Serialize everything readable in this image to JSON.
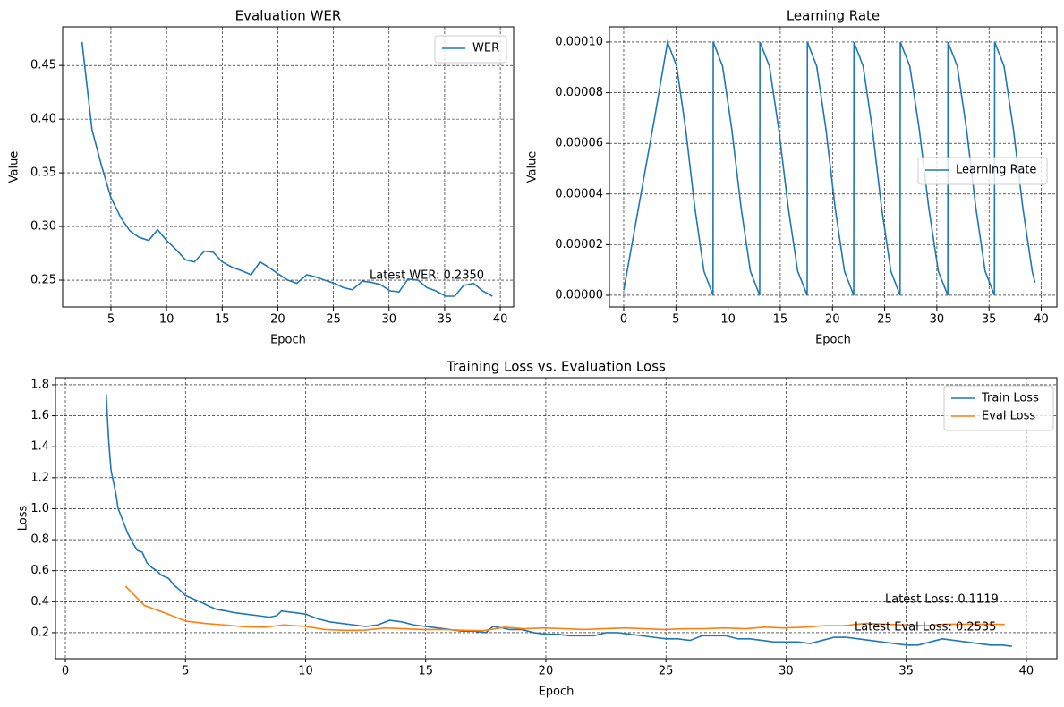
{
  "chart_data": [
    {
      "type": "line",
      "title": "Evaluation WER",
      "x_label": "Epoch",
      "y_label": "Value",
      "xlim": [
        0.66,
        41.2
      ],
      "ylim": [
        0.225,
        0.486
      ],
      "xticks": [
        5,
        10,
        15,
        20,
        25,
        30,
        35,
        40
      ],
      "yticks": [
        0.25,
        {
          "value": 0.3,
          "label": "0.30"
        },
        0.35,
        {
          "value": 0.4,
          "label": "0.40"
        },
        0.45
      ],
      "grid": true,
      "legend": "upper right",
      "annotations": [
        "Latest WER: 0.2350"
      ],
      "series": [
        {
          "name": "WER",
          "color": "#1f77b4",
          "x": [
            2.4,
            3.3,
            4.2,
            5,
            5.9,
            6.7,
            7.5,
            8.4,
            9.2,
            10,
            10.9,
            11.7,
            12.5,
            13.4,
            14.2,
            15,
            15.9,
            16.7,
            17.6,
            18.4,
            19.2,
            20,
            20.9,
            21.7,
            22.6,
            23.4,
            24.2,
            25.1,
            25.9,
            26.7,
            27.6,
            28.4,
            29.2,
            30.1,
            30.9,
            31.7,
            32.6,
            33.4,
            34.2,
            35.1,
            35.9,
            36.7,
            37.6,
            38.4,
            39.3
          ],
          "values": [
            0.472,
            0.39,
            0.355,
            0.327,
            0.308,
            0.296,
            0.29,
            0.287,
            0.297,
            0.287,
            0.278,
            0.269,
            0.267,
            0.277,
            0.276,
            0.267,
            0.262,
            0.259,
            0.255,
            0.267,
            0.262,
            0.256,
            0.25,
            0.247,
            0.255,
            0.253,
            0.25,
            0.247,
            0.243,
            0.241,
            0.249,
            0.248,
            0.246,
            0.24,
            0.239,
            0.251,
            0.25,
            0.243,
            0.24,
            0.235,
            0.235,
            0.245,
            0.247,
            0.24,
            0.235
          ]
        }
      ]
    },
    {
      "type": "line",
      "title": "Learning Rate",
      "x_label": "Epoch",
      "y_label": "Value",
      "xlim": [
        -1.37,
        41.5
      ],
      "ylim": [
        -4.6e-06,
        0.000106
      ],
      "xticks": [
        0,
        5,
        10,
        15,
        20,
        25,
        30,
        35,
        40
      ],
      "yticks": [
        {
          "value": 0,
          "label": "0.00000"
        },
        {
          "value": 2e-05,
          "label": "0.00002"
        },
        {
          "value": 4e-05,
          "label": "0.00004"
        },
        {
          "value": 6e-05,
          "label": "0.00006"
        },
        {
          "value": 8e-05,
          "label": "0.00008"
        },
        {
          "value": 0.0001,
          "label": "0.00010"
        }
      ],
      "grid": true,
      "legend": "center right",
      "series": [
        {
          "name": "Learning Rate",
          "color": "#1f77b4",
          "x": [
            0,
            1,
            2,
            3,
            4.2,
            5.07,
            5.94,
            6.82,
            7.69,
            8.56,
            8.58,
            9.47,
            10.36,
            11.25,
            12.14,
            13.03,
            13.05,
            13.96,
            14.86,
            15.77,
            16.67,
            17.58,
            17.6,
            18.49,
            19.38,
            20.26,
            21.15,
            22.04,
            22.06,
            22.94,
            23.83,
            24.71,
            25.6,
            26.48,
            26.5,
            27.41,
            28.32,
            29.23,
            30.14,
            31.05,
            31.07,
            31.96,
            32.85,
            33.74,
            34.63,
            35.52,
            35.54,
            36.44,
            37.34,
            38.24,
            39.14,
            39.4
          ],
          "values": [
            2e-06,
            2.5e-05,
            4.8e-05,
            7.1e-05,
            0.0001,
            9.05e-05,
            6.55e-05,
            3.45e-05,
            9.5e-06,
            0,
            0.0001,
            9.05e-05,
            6.55e-05,
            3.45e-05,
            9.5e-06,
            0,
            0.0001,
            9.05e-05,
            6.55e-05,
            3.45e-05,
            9.5e-06,
            0,
            0.0001,
            9.05e-05,
            6.55e-05,
            3.45e-05,
            9.5e-06,
            0,
            0.0001,
            9.05e-05,
            6.55e-05,
            3.45e-05,
            9.5e-06,
            0,
            0.0001,
            9.05e-05,
            6.55e-05,
            3.45e-05,
            9.5e-06,
            0,
            0.0001,
            9.05e-05,
            6.55e-05,
            3.45e-05,
            9.5e-06,
            0,
            0.0001,
            9.05e-05,
            6.55e-05,
            3.45e-05,
            9.5e-06,
            5e-06
          ]
        }
      ]
    },
    {
      "type": "line",
      "title": "Training Loss vs. Evaluation Loss",
      "x_label": "Epoch",
      "y_label": "Loss",
      "xlim": [
        -0.41,
        41.27
      ],
      "ylim": [
        0.032,
        1.846
      ],
      "xticks": [
        0,
        5,
        10,
        15,
        20,
        25,
        30,
        35,
        40
      ],
      "yticks": [
        0.2,
        0.4,
        0.6,
        0.8,
        {
          "value": 1,
          "label": "1.0"
        },
        1.2,
        1.4,
        1.6,
        1.8
      ],
      "grid": true,
      "legend": "upper right",
      "annotations": [
        "Latest Loss: 0.1119",
        "Latest Eval Loss: 0.2535"
      ],
      "series": [
        {
          "name": "Train Loss",
          "color": "#1f77b4",
          "x": [
            1.7,
            1.8,
            1.9,
            2.1,
            2.2,
            2.4,
            2.6,
            2.8,
            3.0,
            3.2,
            3.4,
            3.6,
            3.8,
            4.0,
            4.3,
            4.5,
            4.8,
            5.0,
            5.3,
            5.6,
            6.0,
            6.3,
            6.7,
            7.0,
            7.5,
            8.0,
            8.5,
            8.8,
            9.0,
            9.5,
            10,
            10.5,
            11,
            11.5,
            12,
            12.5,
            13,
            13.5,
            14,
            14.5,
            15,
            15.5,
            16,
            16.5,
            17,
            17.5,
            17.8,
            18.2,
            18.5,
            19,
            19.5,
            20,
            20.5,
            21,
            21.5,
            22,
            22.5,
            23,
            23.5,
            24,
            24.5,
            25,
            25.5,
            26,
            26.5,
            27,
            27.5,
            28,
            28.5,
            29,
            29.5,
            30,
            30.5,
            31,
            31.5,
            32,
            32.5,
            33,
            33.5,
            34,
            34.5,
            35,
            35.5,
            36,
            36.5,
            37,
            37.5,
            38,
            38.5,
            39,
            39.4
          ],
          "values": [
            1.74,
            1.45,
            1.25,
            1.1,
            1.0,
            0.92,
            0.84,
            0.78,
            0.73,
            0.72,
            0.65,
            0.62,
            0.6,
            0.57,
            0.55,
            0.51,
            0.47,
            0.44,
            0.42,
            0.4,
            0.37,
            0.35,
            0.34,
            0.33,
            0.32,
            0.31,
            0.3,
            0.31,
            0.34,
            0.33,
            0.32,
            0.29,
            0.27,
            0.26,
            0.25,
            0.24,
            0.25,
            0.28,
            0.27,
            0.25,
            0.24,
            0.23,
            0.22,
            0.21,
            0.21,
            0.2,
            0.24,
            0.23,
            0.22,
            0.22,
            0.2,
            0.19,
            0.19,
            0.18,
            0.18,
            0.18,
            0.2,
            0.2,
            0.19,
            0.18,
            0.17,
            0.16,
            0.16,
            0.15,
            0.18,
            0.18,
            0.18,
            0.16,
            0.16,
            0.15,
            0.14,
            0.14,
            0.14,
            0.13,
            0.15,
            0.17,
            0.17,
            0.16,
            0.15,
            0.14,
            0.13,
            0.12,
            0.12,
            0.14,
            0.16,
            0.15,
            0.14,
            0.13,
            0.12,
            0.12,
            0.1119
          ]
        },
        {
          "name": "Eval Loss",
          "color": "#ff7f0e",
          "x": [
            2.5,
            3.3,
            4.1,
            5,
            5.8,
            6.6,
            7.5,
            8.3,
            9.1,
            10,
            10.8,
            11.6,
            12.4,
            13.3,
            14.1,
            14.9,
            15.8,
            16.6,
            17.4,
            18.3,
            19.1,
            19.9,
            20.8,
            21.6,
            22.4,
            23.3,
            24.1,
            24.9,
            25.8,
            26.6,
            27.4,
            28.3,
            29.1,
            29.9,
            30.8,
            31.6,
            32.4,
            33.3,
            34.1,
            34.9,
            35.8,
            36.6,
            37.4,
            38.3,
            39.1
          ],
          "values": [
            0.5,
            0.375,
            0.33,
            0.275,
            0.26,
            0.25,
            0.237,
            0.235,
            0.25,
            0.24,
            0.22,
            0.215,
            0.215,
            0.23,
            0.225,
            0.22,
            0.22,
            0.215,
            0.213,
            0.235,
            0.225,
            0.23,
            0.225,
            0.22,
            0.225,
            0.23,
            0.225,
            0.22,
            0.225,
            0.225,
            0.23,
            0.225,
            0.235,
            0.23,
            0.235,
            0.245,
            0.245,
            0.26,
            0.255,
            0.25,
            0.245,
            0.255,
            0.255,
            0.255,
            0.2535
          ]
        }
      ]
    }
  ]
}
